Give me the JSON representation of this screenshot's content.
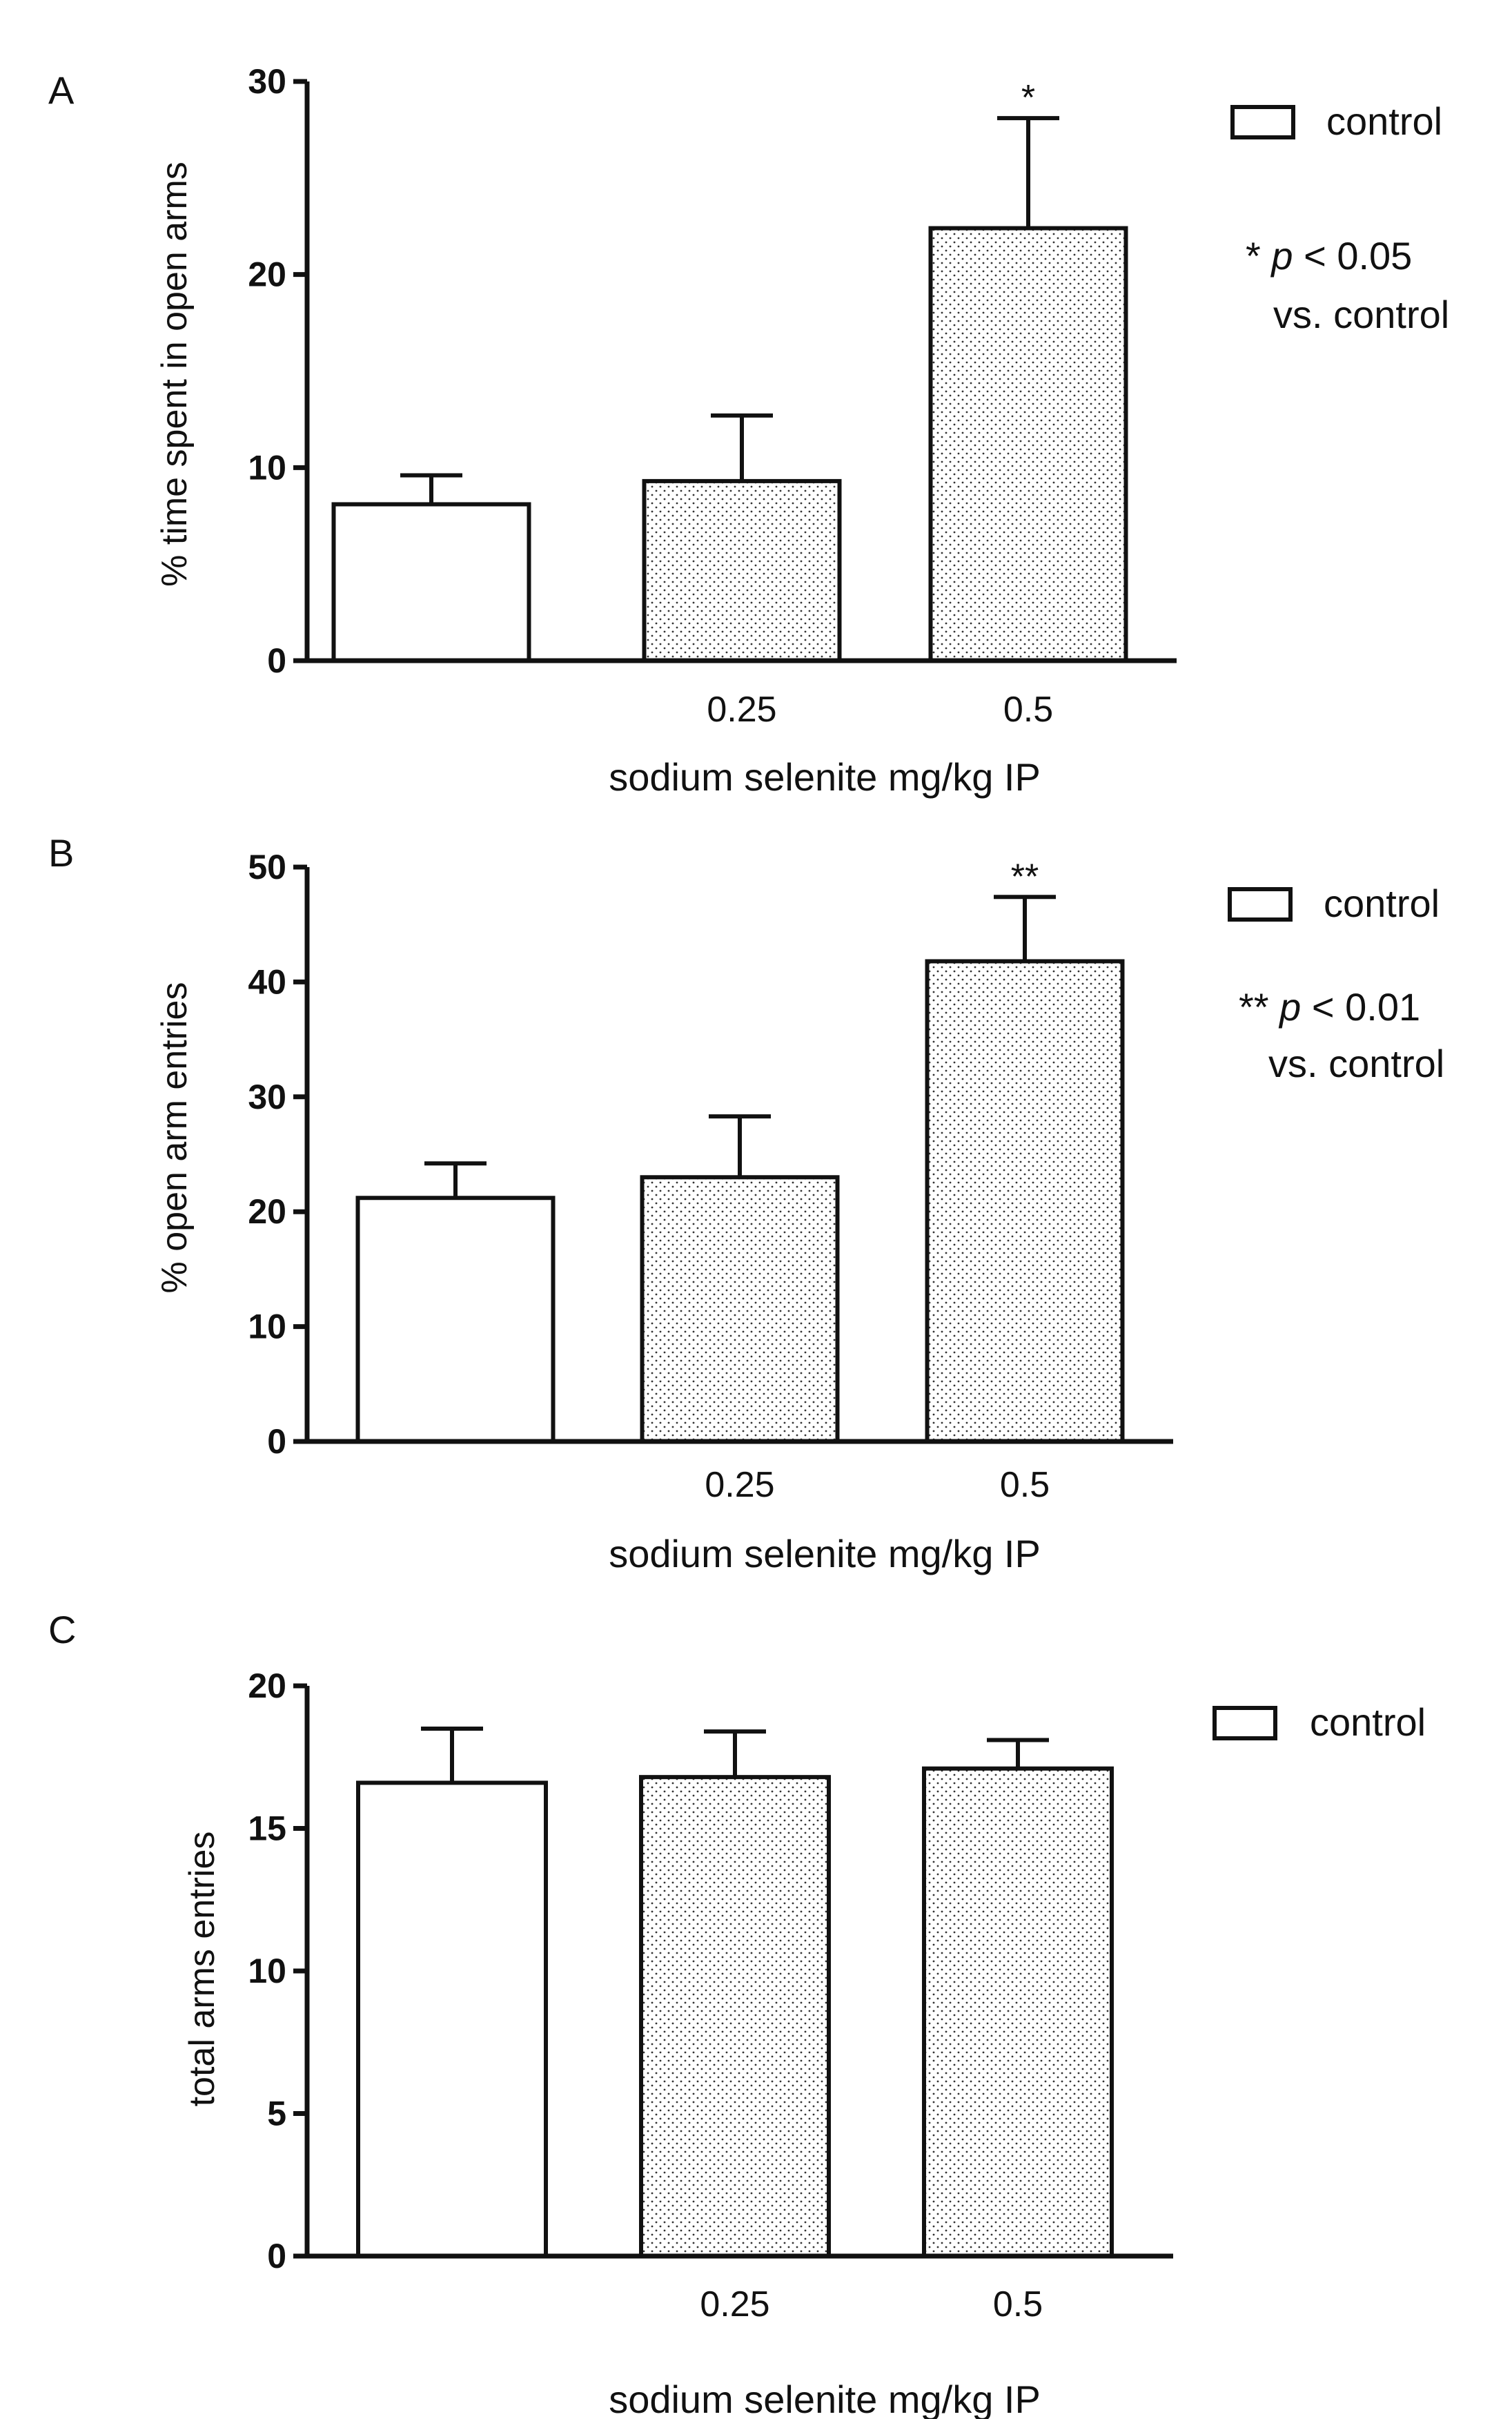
{
  "chart_data": [
    {
      "panel": "A",
      "type": "bar",
      "categories": [
        "",
        "0.25",
        "0.5"
      ],
      "values": [
        8.1,
        9.3,
        22.4
      ],
      "errors": [
        1.5,
        3.4,
        5.7
      ],
      "significance": [
        "",
        "",
        "*"
      ],
      "fill": [
        "white",
        "dotted",
        "dotted"
      ],
      "ylabel": "% time spent in open arms",
      "xlabel": "sodium selenite mg/kg IP",
      "ylim": [
        0,
        30
      ],
      "yticks": [
        "0",
        "10",
        "20",
        "30"
      ],
      "legend": {
        "label": "control",
        "position": "top-right"
      },
      "note": {
        "prefix": "* ",
        "p": "p",
        "rest": " < 0.05",
        "line2": "vs. control"
      }
    },
    {
      "panel": "B",
      "type": "bar",
      "categories": [
        "",
        "0.25",
        "0.5"
      ],
      "values": [
        21.2,
        23.0,
        41.8
      ],
      "errors": [
        3.0,
        5.3,
        5.6
      ],
      "significance": [
        "",
        "",
        "**"
      ],
      "fill": [
        "white",
        "dotted",
        "dotted"
      ],
      "ylabel": "% open arm entries",
      "xlabel": "sodium selenite mg/kg IP",
      "ylim": [
        0,
        50
      ],
      "yticks": [
        "0",
        "10",
        "20",
        "30",
        "40",
        "50"
      ],
      "legend": {
        "label": "control",
        "position": "top-right"
      },
      "note": {
        "prefix": "** ",
        "p": "p",
        "rest": " < 0.01",
        "line2": "vs. control"
      }
    },
    {
      "panel": "C",
      "type": "bar",
      "categories": [
        "",
        "0.25",
        "0.5"
      ],
      "values": [
        16.6,
        16.8,
        17.1
      ],
      "errors": [
        1.9,
        1.6,
        1.0
      ],
      "significance": [
        "",
        "",
        ""
      ],
      "fill": [
        "white",
        "dotted",
        "dotted"
      ],
      "ylabel": "total arms entries",
      "xlabel": "sodium selenite mg/kg IP",
      "ylim": [
        0,
        20
      ],
      "yticks": [
        "0",
        "5",
        "10",
        "15",
        "20"
      ],
      "legend": {
        "label": "control",
        "position": "top-right"
      }
    }
  ]
}
